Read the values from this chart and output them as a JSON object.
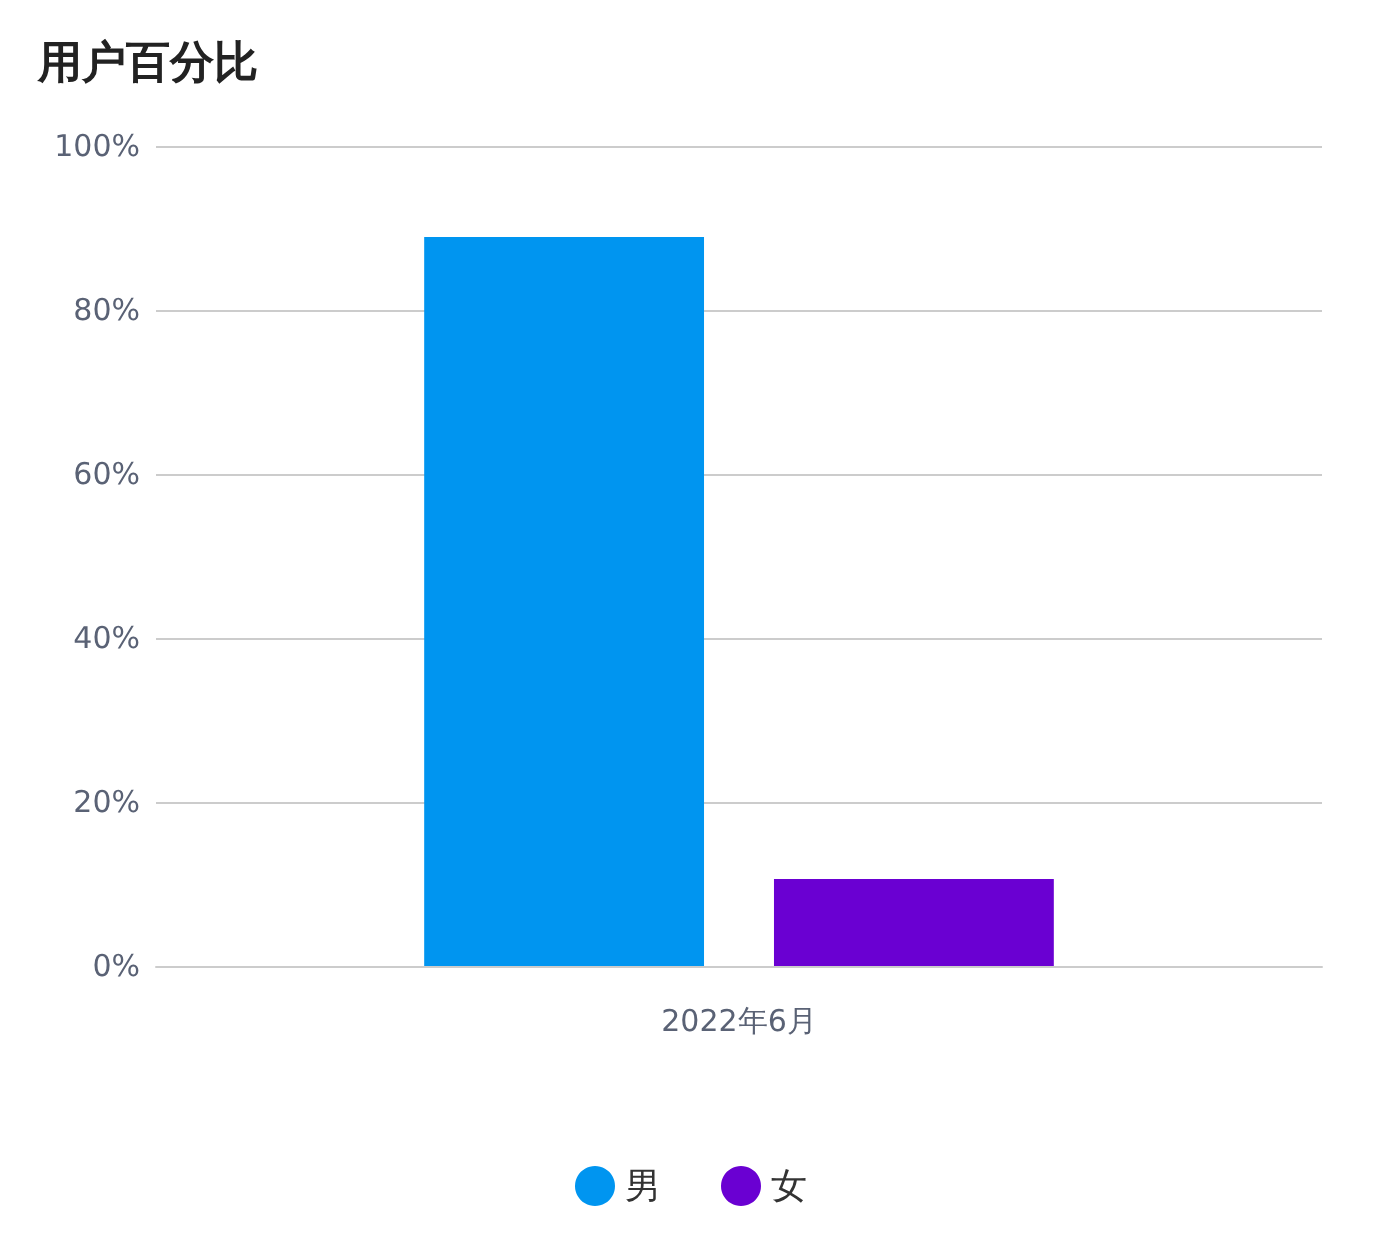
{
  "chart_data": {
    "type": "bar",
    "title": "用户百分比",
    "categories": [
      "2022年6月"
    ],
    "series": [
      {
        "name": "男",
        "color": "#0095f0",
        "values": [
          88.9
        ]
      },
      {
        "name": "女",
        "color": "#6a00d2",
        "values": [
          10.6
        ]
      }
    ],
    "ylim": [
      0,
      100
    ],
    "yticks": [
      {
        "value": 0,
        "label": "0%"
      },
      {
        "value": 20,
        "label": "20%"
      },
      {
        "value": 40,
        "label": "40%"
      },
      {
        "value": 60,
        "label": "60%"
      },
      {
        "value": 80,
        "label": "80%"
      },
      {
        "value": 100,
        "label": "100%"
      }
    ],
    "grid": "y",
    "legend": "bottom"
  }
}
